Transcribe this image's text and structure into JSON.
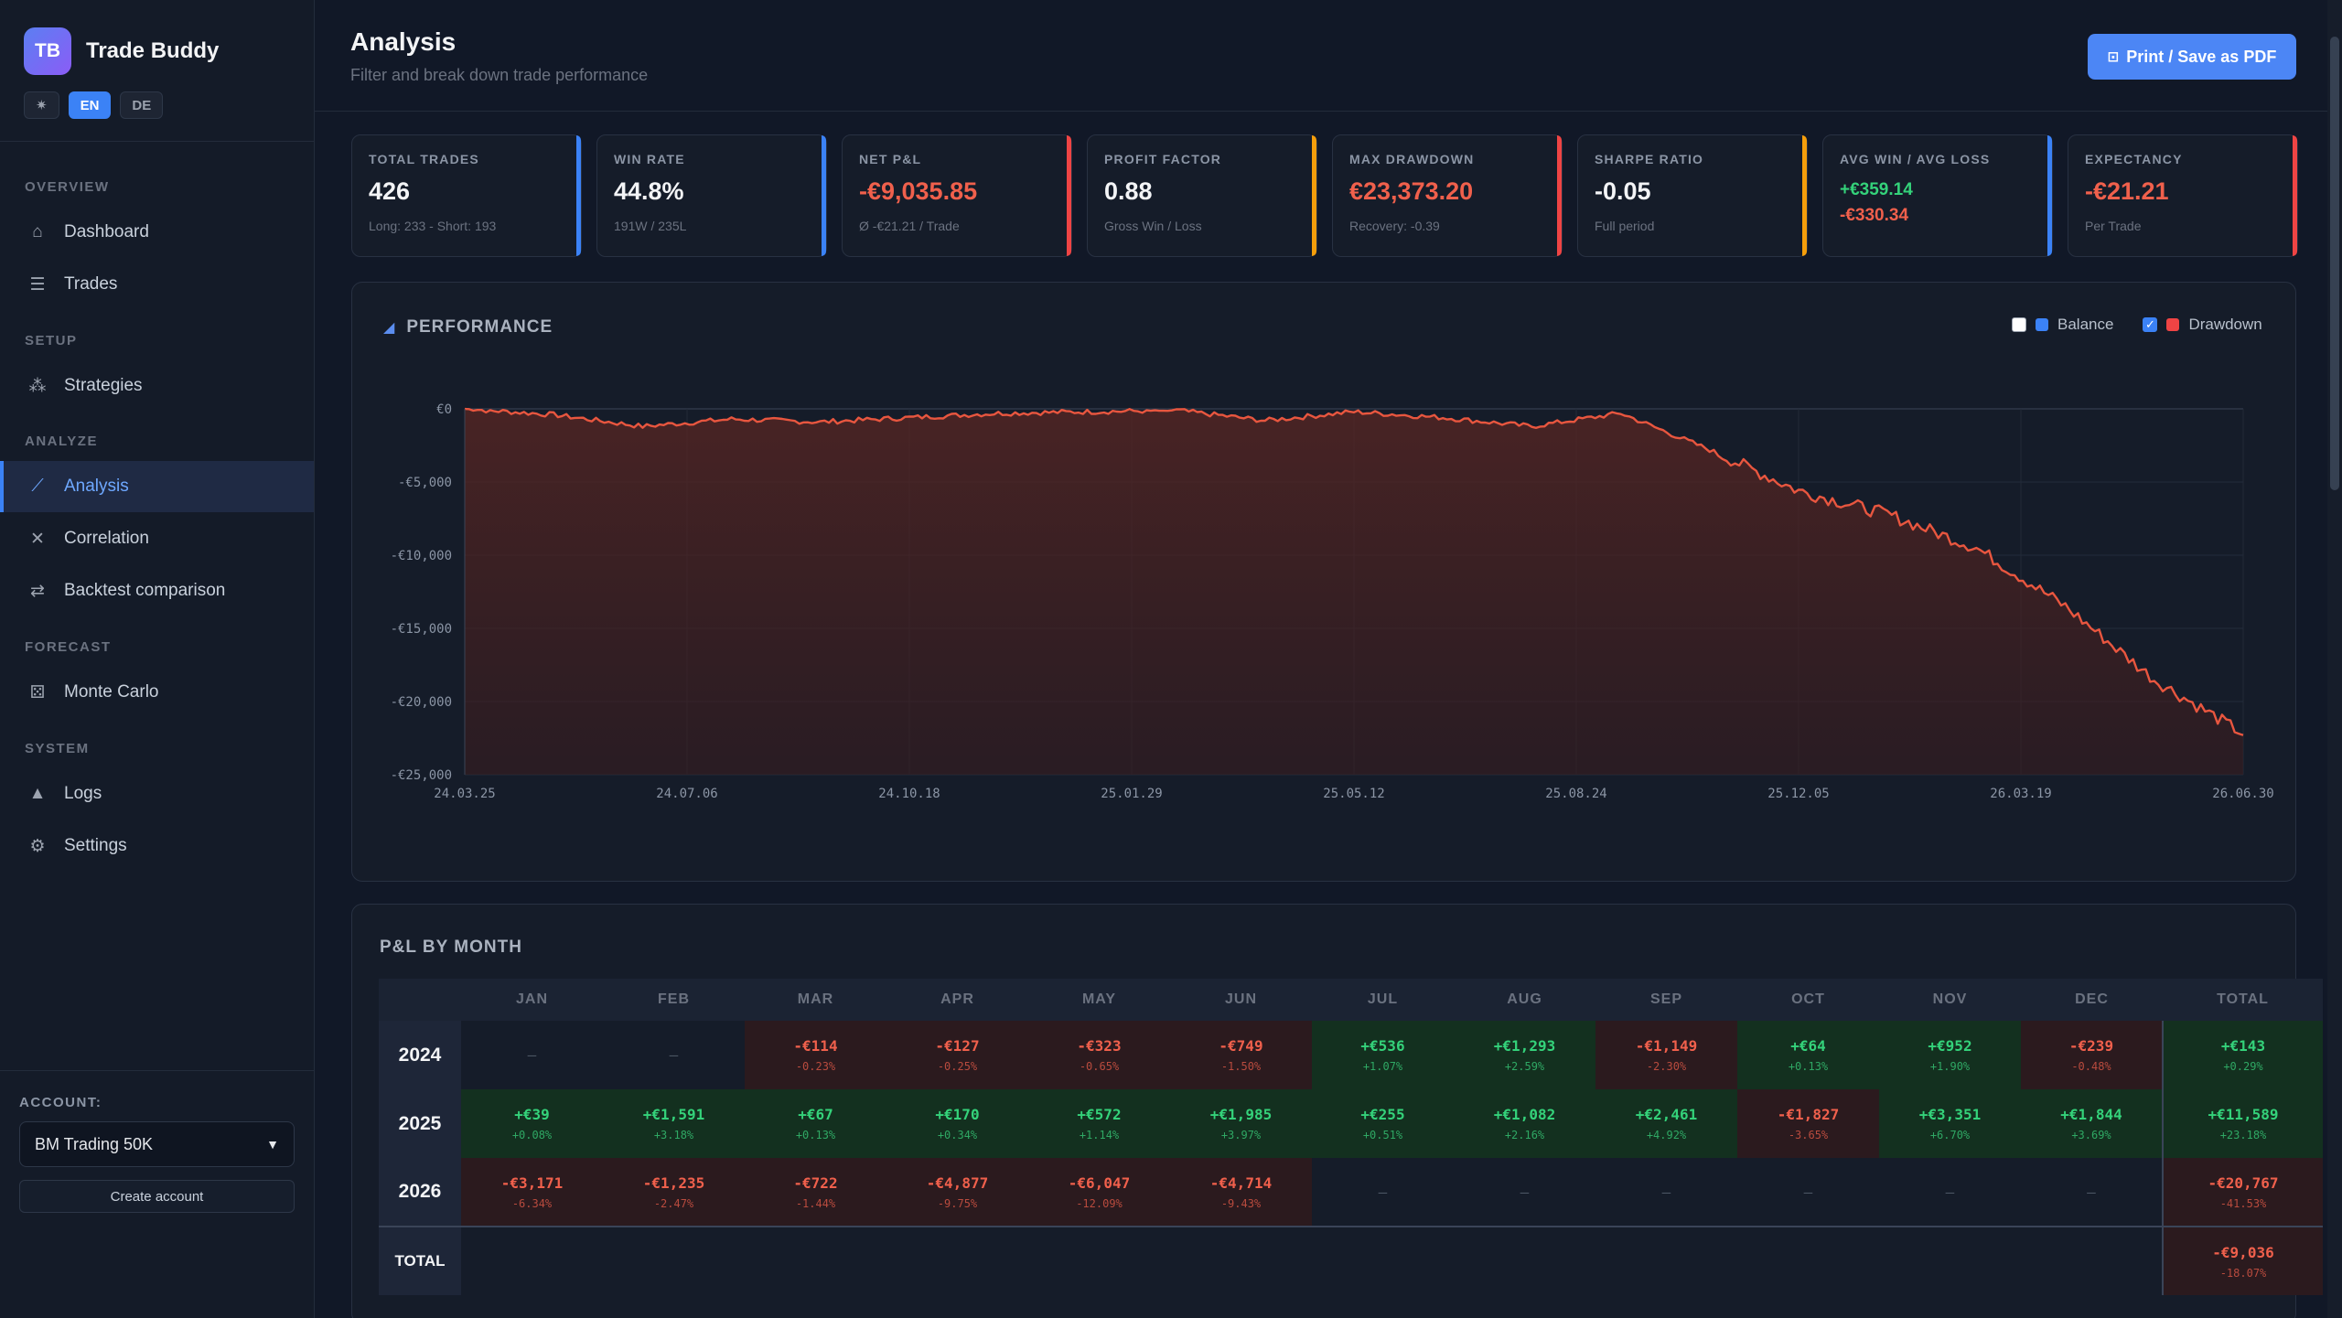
{
  "app": {
    "logo_initials": "TB",
    "name": "Trade Buddy"
  },
  "lang": {
    "theme_icon": "sun-icon",
    "items": [
      "EN",
      "DE"
    ],
    "active": "EN"
  },
  "nav": {
    "sections": [
      {
        "label": "OVERVIEW",
        "items": [
          {
            "label": "Dashboard",
            "icon": "home-icon"
          },
          {
            "label": "Trades",
            "icon": "list-icon"
          }
        ]
      },
      {
        "label": "SETUP",
        "items": [
          {
            "label": "Strategies",
            "icon": "sitemap-icon"
          }
        ]
      },
      {
        "label": "ANALYZE",
        "items": [
          {
            "label": "Analysis",
            "icon": "line-chart-icon",
            "active": true
          },
          {
            "label": "Correlation",
            "icon": "network-icon"
          },
          {
            "label": "Backtest comparison",
            "icon": "swap-icon"
          }
        ]
      },
      {
        "label": "FORECAST",
        "items": [
          {
            "label": "Monte Carlo",
            "icon": "dice-icon"
          }
        ]
      },
      {
        "label": "SYSTEM",
        "items": [
          {
            "label": "Logs",
            "icon": "warning-icon"
          },
          {
            "label": "Settings",
            "icon": "gear-icon"
          }
        ]
      }
    ]
  },
  "account": {
    "label": "ACCOUNT:",
    "selected": "BM Trading 50K",
    "create_label": "Create account"
  },
  "header": {
    "title": "Analysis",
    "subtitle": "Filter and break down trade performance",
    "print_label": "Print / Save as PDF",
    "print_icon": "lock-icon"
  },
  "kpis": [
    {
      "label": "TOTAL TRADES",
      "value": "426",
      "sub": "Long: 233 - Short: 193",
      "accent": "#3b82f6",
      "tone": "neutral"
    },
    {
      "label": "WIN RATE",
      "value": "44.8%",
      "sub": "191W / 235L",
      "accent": "#3b82f6",
      "tone": "neutral"
    },
    {
      "label": "NET P&L",
      "value": "-€9,035.85",
      "sub": "Ø -€21.21 / Trade",
      "accent": "#ef4444",
      "tone": "negative"
    },
    {
      "label": "PROFIT FACTOR",
      "value": "0.88",
      "sub": "Gross Win / Loss",
      "accent": "#f59e0b",
      "tone": "neutral"
    },
    {
      "label": "MAX DRAWDOWN",
      "value": "€23,373.20",
      "sub": "Recovery: -0.39",
      "accent": "#ef4444",
      "tone": "negative"
    },
    {
      "label": "SHARPE RATIO",
      "value": "-0.05",
      "sub": "Full period",
      "accent": "#f59e0b",
      "tone": "neutral"
    },
    {
      "label": "AVG WIN / AVG LOSS",
      "value_win": "+€359.14",
      "value_loss": "-€330.34",
      "accent": "#3b82f6",
      "tone": "pair"
    },
    {
      "label": "EXPECTANCY",
      "value": "-€21.21",
      "sub": "Per Trade",
      "accent": "#ef4444",
      "tone": "negative"
    }
  ],
  "performance": {
    "title": "PERFORMANCE",
    "title_icon": "area-chart-icon",
    "legend": [
      {
        "label": "Balance",
        "checked": false,
        "color": "#3b82f6"
      },
      {
        "label": "Drawdown",
        "checked": true,
        "color": "#ef4444"
      }
    ]
  },
  "chart_data": {
    "type": "area",
    "title": "PERFORMANCE",
    "series": [
      {
        "name": "Drawdown",
        "color": "#e8563f",
        "x": [
          "24.03.25",
          "24.05.15",
          "24.07.06",
          "24.08.27",
          "24.10.18",
          "24.12.09",
          "25.01.29",
          "25.03.21",
          "25.05.12",
          "25.07.03",
          "25.08.24",
          "25.10.15",
          "25.11.05",
          "25.12.05",
          "26.01.10",
          "26.02.10",
          "26.03.19",
          "26.04.15",
          "26.05.10",
          "26.06.01",
          "26.06.30"
        ],
        "values": [
          0,
          -400,
          -1200,
          -700,
          -900,
          -600,
          -300,
          -200,
          -100,
          -800,
          -200,
          -600,
          -1200,
          -300,
          -2800,
          -5600,
          -7200,
          -9500,
          -13500,
          -18500,
          -22200
        ]
      }
    ],
    "x_ticks": [
      "24.03.25",
      "24.07.06",
      "24.10.18",
      "25.01.29",
      "25.05.12",
      "25.08.24",
      "25.12.05",
      "26.03.19",
      "26.06.30"
    ],
    "y_ticks": [
      "€0",
      "-€5,000",
      "-€10,000",
      "-€15,000",
      "-€20,000",
      "-€25,000"
    ],
    "ylim": [
      -25000,
      0
    ],
    "grid": true,
    "legend": "top-right"
  },
  "monthly": {
    "title": "P&L BY MONTH",
    "columns": [
      "",
      "JAN",
      "FEB",
      "MAR",
      "APR",
      "MAY",
      "JUN",
      "JUL",
      "AUG",
      "SEP",
      "OCT",
      "NOV",
      "DEC",
      "TOTAL"
    ],
    "rows": [
      {
        "year": "2024",
        "cells": [
          {
            "v": "–"
          },
          {
            "v": "–"
          },
          {
            "v": "-€114",
            "p": "-0.23%"
          },
          {
            "v": "-€127",
            "p": "-0.25%"
          },
          {
            "v": "-€323",
            "p": "-0.65%"
          },
          {
            "v": "-€749",
            "p": "-1.50%"
          },
          {
            "v": "+€536",
            "p": "+1.07%"
          },
          {
            "v": "+€1,293",
            "p": "+2.59%"
          },
          {
            "v": "-€1,149",
            "p": "-2.30%"
          },
          {
            "v": "+€64",
            "p": "+0.13%"
          },
          {
            "v": "+€952",
            "p": "+1.90%"
          },
          {
            "v": "-€239",
            "p": "-0.48%"
          },
          {
            "v": "+€143",
            "p": "+0.29%"
          }
        ]
      },
      {
        "year": "2025",
        "cells": [
          {
            "v": "+€39",
            "p": "+0.08%"
          },
          {
            "v": "+€1,591",
            "p": "+3.18%"
          },
          {
            "v": "+€67",
            "p": "+0.13%"
          },
          {
            "v": "+€170",
            "p": "+0.34%"
          },
          {
            "v": "+€572",
            "p": "+1.14%"
          },
          {
            "v": "+€1,985",
            "p": "+3.97%"
          },
          {
            "v": "+€255",
            "p": "+0.51%"
          },
          {
            "v": "+€1,082",
            "p": "+2.16%"
          },
          {
            "v": "+€2,461",
            "p": "+4.92%"
          },
          {
            "v": "-€1,827",
            "p": "-3.65%"
          },
          {
            "v": "+€3,351",
            "p": "+6.70%"
          },
          {
            "v": "+€1,844",
            "p": "+3.69%"
          },
          {
            "v": "+€11,589",
            "p": "+23.18%"
          }
        ]
      },
      {
        "year": "2026",
        "cells": [
          {
            "v": "-€3,171",
            "p": "-6.34%"
          },
          {
            "v": "-€1,235",
            "p": "-2.47%"
          },
          {
            "v": "-€722",
            "p": "-1.44%"
          },
          {
            "v": "-€4,877",
            "p": "-9.75%"
          },
          {
            "v": "-€6,047",
            "p": "-12.09%"
          },
          {
            "v": "-€4,714",
            "p": "-9.43%"
          },
          {
            "v": "–"
          },
          {
            "v": "–"
          },
          {
            "v": "–"
          },
          {
            "v": "–"
          },
          {
            "v": "–"
          },
          {
            "v": "–"
          },
          {
            "v": "-€20,767",
            "p": "-41.53%"
          }
        ]
      }
    ],
    "total_row": {
      "label": "TOTAL",
      "total": {
        "v": "-€9,036",
        "p": "-18.07%"
      }
    }
  }
}
